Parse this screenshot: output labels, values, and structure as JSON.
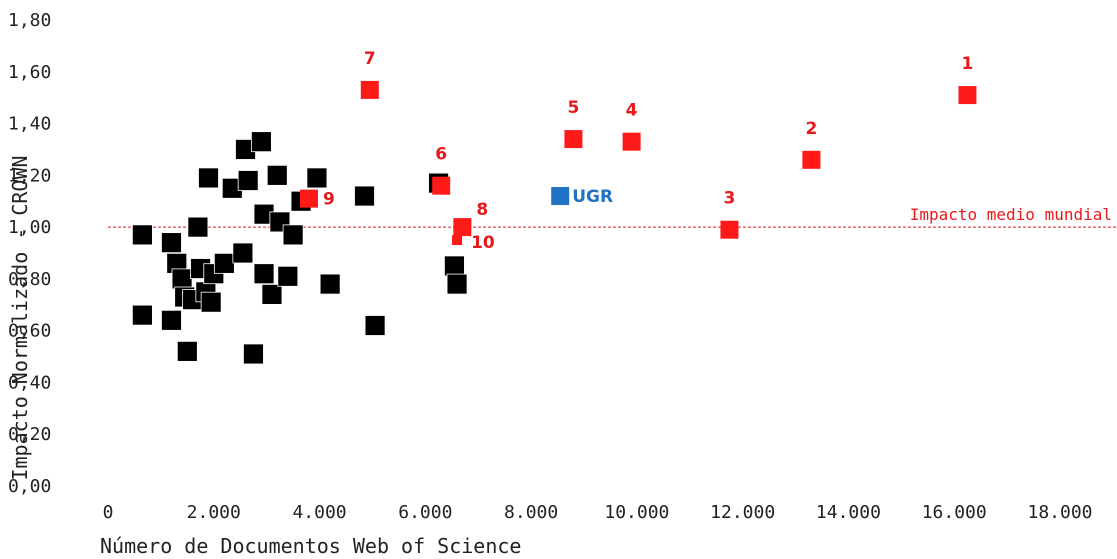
{
  "chart_data": {
    "type": "scatter",
    "xlabel": "Número de Documentos Web of Science",
    "ylabel": "Impacto Normalizado - CROWN",
    "xlim": [
      0,
      18000
    ],
    "ylim": [
      0,
      1.8
    ],
    "x_ticks": [
      {
        "value": 0,
        "label": "0"
      },
      {
        "value": 2000,
        "label": "2.000"
      },
      {
        "value": 4000,
        "label": "4.000"
      },
      {
        "value": 6000,
        "label": "6.000"
      },
      {
        "value": 8000,
        "label": "8.000"
      },
      {
        "value": 10000,
        "label": "10.000"
      },
      {
        "value": 12000,
        "label": "12.000"
      },
      {
        "value": 14000,
        "label": "14.000"
      },
      {
        "value": 16000,
        "label": "16.000"
      },
      {
        "value": 18000,
        "label": "18.000"
      }
    ],
    "y_ticks": [
      {
        "value": 0,
        "label": "0,00"
      },
      {
        "value": 0.2,
        "label": "0,20"
      },
      {
        "value": 0.4,
        "label": "0,40"
      },
      {
        "value": 0.6,
        "label": "0,60"
      },
      {
        "value": 0.8,
        "label": "0,80"
      },
      {
        "value": 1.0,
        "label": "1,00"
      },
      {
        "value": 1.2,
        "label": "1,20"
      },
      {
        "value": 1.4,
        "label": "1,40"
      },
      {
        "value": 1.6,
        "label": "1,60"
      },
      {
        "value": 1.8,
        "label": "1,80"
      }
    ],
    "grid": false,
    "reference_line": {
      "y": 1.0,
      "label": "Impacto medio mundial",
      "color": "#e8191b"
    },
    "colors": {
      "top": "#ff1a1a",
      "top_label": "#e8191b",
      "ugr": "#1f72c4",
      "other": "#000000"
    },
    "series": [
      {
        "key": "top",
        "points": [
          {
            "x": 16250,
            "y": 1.51,
            "label": "1"
          },
          {
            "x": 13300,
            "y": 1.26,
            "label": "2"
          },
          {
            "x": 11750,
            "y": 0.99,
            "label": "3"
          },
          {
            "x": 9900,
            "y": 1.33,
            "label": "4"
          },
          {
            "x": 8800,
            "y": 1.34,
            "label": "5"
          },
          {
            "x": 6300,
            "y": 1.16,
            "label": "6"
          },
          {
            "x": 4950,
            "y": 1.53,
            "label": "7"
          },
          {
            "x": 6700,
            "y": 1.0,
            "label": "8"
          },
          {
            "x": 3800,
            "y": 1.11,
            "label": "9"
          },
          {
            "x": 6600,
            "y": 0.95,
            "label": "10"
          }
        ]
      },
      {
        "key": "ugr",
        "points": [
          {
            "x": 8550,
            "y": 1.12,
            "label": "UGR"
          }
        ]
      },
      {
        "key": "other",
        "points": [
          {
            "x": 650,
            "y": 0.97
          },
          {
            "x": 650,
            "y": 0.66
          },
          {
            "x": 1200,
            "y": 0.94
          },
          {
            "x": 1200,
            "y": 0.64
          },
          {
            "x": 1300,
            "y": 0.86
          },
          {
            "x": 1400,
            "y": 0.8
          },
          {
            "x": 1450,
            "y": 0.73
          },
          {
            "x": 1500,
            "y": 0.52
          },
          {
            "x": 1600,
            "y": 0.72
          },
          {
            "x": 1700,
            "y": 1.0
          },
          {
            "x": 1750,
            "y": 0.84
          },
          {
            "x": 1850,
            "y": 0.75
          },
          {
            "x": 1900,
            "y": 1.19
          },
          {
            "x": 1950,
            "y": 0.71
          },
          {
            "x": 2000,
            "y": 0.82
          },
          {
            "x": 2200,
            "y": 0.86
          },
          {
            "x": 2350,
            "y": 1.15
          },
          {
            "x": 2550,
            "y": 0.9
          },
          {
            "x": 2600,
            "y": 1.3
          },
          {
            "x": 2650,
            "y": 1.18
          },
          {
            "x": 2750,
            "y": 0.51
          },
          {
            "x": 2900,
            "y": 1.33
          },
          {
            "x": 2950,
            "y": 0.82
          },
          {
            "x": 2950,
            "y": 1.05
          },
          {
            "x": 3100,
            "y": 0.74
          },
          {
            "x": 3200,
            "y": 1.2
          },
          {
            "x": 3250,
            "y": 1.02
          },
          {
            "x": 3400,
            "y": 0.81
          },
          {
            "x": 3500,
            "y": 0.97
          },
          {
            "x": 3650,
            "y": 1.1
          },
          {
            "x": 3950,
            "y": 1.19
          },
          {
            "x": 4200,
            "y": 0.78
          },
          {
            "x": 4850,
            "y": 1.12
          },
          {
            "x": 5050,
            "y": 0.62
          },
          {
            "x": 6250,
            "y": 1.17
          },
          {
            "x": 6550,
            "y": 0.85
          },
          {
            "x": 6600,
            "y": 0.78
          }
        ]
      }
    ]
  }
}
